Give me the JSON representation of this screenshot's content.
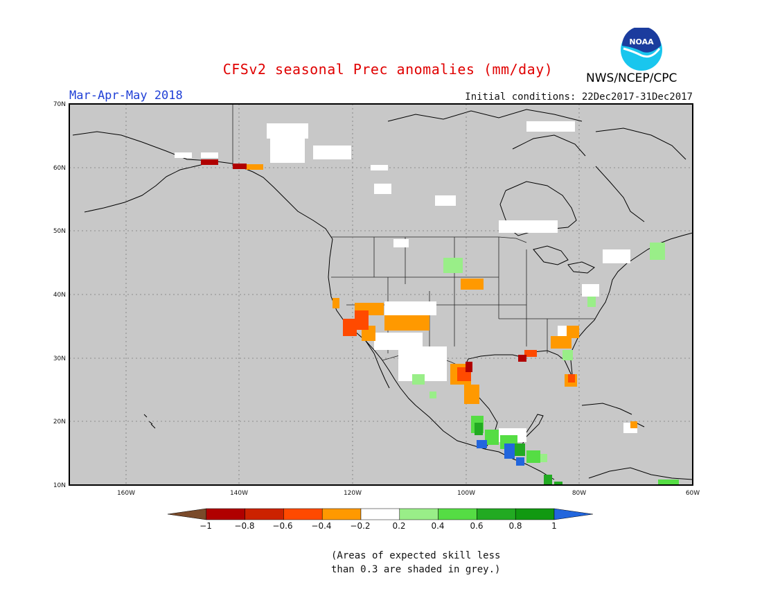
{
  "title": "CFSv2 seasonal Prec anomalies (mm/day)",
  "period": "Mar-Apr-May 2018",
  "initial_conditions": "Initial conditions: 22Dec2017-31Dec2017",
  "agency": "NWS/NCEP/CPC",
  "logo_text": "NOAA",
  "note_lines": [
    "(Areas of expected skill less",
    "than 0.3 are shaded in grey.)"
  ],
  "map": {
    "lon_range": [
      -170,
      -60
    ],
    "lat_range": [
      10,
      70
    ],
    "lat_labels": [
      "70N",
      "60N",
      "50N",
      "40N",
      "30N",
      "20N",
      "10N"
    ],
    "lon_labels": [
      "160W",
      "140W",
      "120W",
      "100W",
      "80W",
      "60W"
    ],
    "background_color": "#c8c8c8",
    "grid": "dotted"
  },
  "colorbar": {
    "labels": [
      "−1",
      "−0.8",
      "−0.6",
      "−0.4",
      "−0.2",
      "0.2",
      "0.4",
      "0.6",
      "0.8",
      "1"
    ],
    "colors": [
      "#7a4a2a",
      "#b00000",
      "#cc2200",
      "#ff4a00",
      "#ff9900",
      "#ffffff",
      "#99ee88",
      "#55dd44",
      "#22aa22",
      "#119911",
      "#2266dd"
    ]
  }
}
